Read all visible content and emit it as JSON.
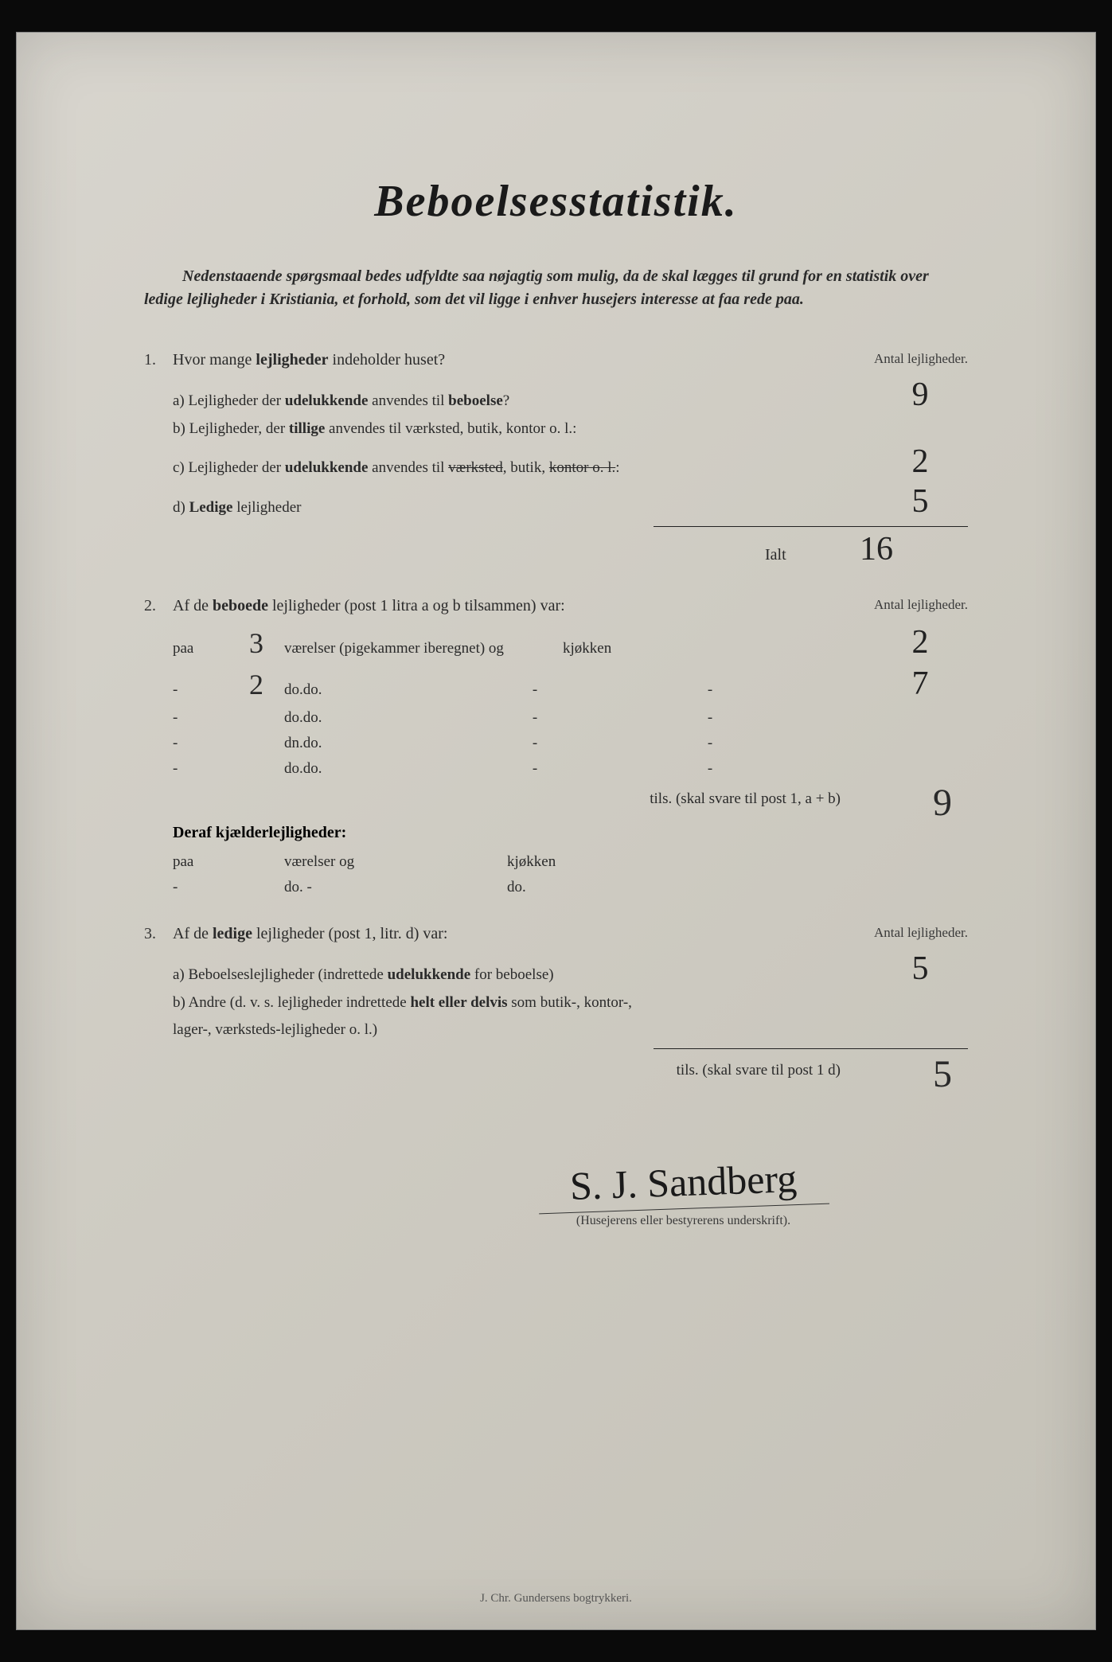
{
  "title": "Beboelsesstatistik.",
  "preamble": "Nedenstaaende spørgsmaal bedes udfyldte saa nøjagtig som mulig, da de skal lægges til grund for en statistik over ledige lejligheder i Kristiania, et forhold, som det vil ligge i enhver husejers interesse at faa rede paa.",
  "antal_header": "Antal lejligheder.",
  "q1": {
    "num": "1.",
    "text_pre": "Hvor mange ",
    "text_bold": "lejligheder",
    "text_post": " indeholder huset?",
    "a": {
      "label_pre": "a) Lejligheder der ",
      "label_bold": "udelukkende",
      "label_mid": " anvendes til ",
      "label_bold2": "beboelse",
      "label_post": "?",
      "answer": "9"
    },
    "b": {
      "label_pre": "b) Lejligheder, der ",
      "label_bold": "tillige",
      "label_post": " anvendes til værksted, butik, kontor o. l.:",
      "answer": ""
    },
    "c": {
      "label_pre": "c) Lejligheder der ",
      "label_bold": "udelukkende",
      "label_mid": " anvendes til ",
      "strike1": "værksted",
      "label_mid2": ", butik, ",
      "strike2": "kontor o. l.",
      "label_post": ":",
      "answer": "2"
    },
    "d": {
      "label_pre": "d) ",
      "label_bold": "Ledige",
      "label_post": " lejligheder",
      "answer": "5"
    },
    "ialt_label": "Ialt",
    "ialt_answer": "16"
  },
  "q2": {
    "num": "2.",
    "text_pre": "Af de ",
    "text_bold": "beboede",
    "text_post": " lejligheder (post 1 litra a og b tilsammen) var:",
    "rows": [
      {
        "paa": "paa",
        "rooms": "3",
        "vaer": "værelser (",
        "strike": "pigekammer iberegnet",
        "vaer2": ") og",
        "dash1": "",
        "kjok": "kjøkken",
        "dash2": "",
        "answer": "2"
      },
      {
        "paa": "-",
        "rooms": "2",
        "vaer": "do.",
        "strike": "",
        "vaer2": "do.",
        "dash1": "-",
        "kjok": "",
        "dash2": "-",
        "answer": "7"
      },
      {
        "paa": "-",
        "rooms": "",
        "vaer": "do.",
        "strike": "",
        "vaer2": "do.",
        "dash1": "-",
        "kjok": "",
        "dash2": "-",
        "answer": ""
      },
      {
        "paa": "-",
        "rooms": "",
        "vaer": "dn.",
        "strike": "",
        "vaer2": "do.",
        "dash1": "-",
        "kjok": "",
        "dash2": "-",
        "answer": ""
      },
      {
        "paa": "-",
        "rooms": "",
        "vaer": "do.",
        "strike": "",
        "vaer2": "do.",
        "dash1": "-",
        "kjok": "",
        "dash2": "-",
        "answer": ""
      }
    ],
    "tils": "tils. (skal svare til post 1, a + b)",
    "tils_answer": "9",
    "deraf": "Deraf kjælderlejligheder:",
    "deraf_rows": [
      {
        "paa": "paa",
        "rooms": "",
        "vaer": "værelser og",
        "kjok": "kjøkken"
      },
      {
        "paa": "-",
        "rooms": "",
        "vaer": "do.    -",
        "kjok": "do."
      }
    ]
  },
  "q3": {
    "num": "3.",
    "text_pre": "Af de ",
    "text_bold": "ledige",
    "text_post": " lejligheder (post 1, litr. d) var:",
    "a": {
      "label_pre": "a) Beboelseslejligheder (indrettede ",
      "label_bold": "udelukkende",
      "label_post": " for beboelse)",
      "answer": "5"
    },
    "b": {
      "label_pre": "b) Andre (d. v. s. lejligheder indrettede ",
      "label_bold": "helt eller delvis",
      "label_post": " som butik-, kontor-,",
      "line2": "lager-, værksteds-lejligheder o. l.)",
      "answer": ""
    },
    "tils": "tils. (skal svare til post 1 d)",
    "tils_answer": "5"
  },
  "signature": "S. J. Sandberg",
  "sig_caption": "(Husejerens eller bestyrerens underskrift).",
  "footer": "J. Chr. Gundersens bogtrykkeri.",
  "colors": {
    "page_bg": "#d0cdc4",
    "text": "#2a2a2a",
    "handwriting": "#222"
  }
}
